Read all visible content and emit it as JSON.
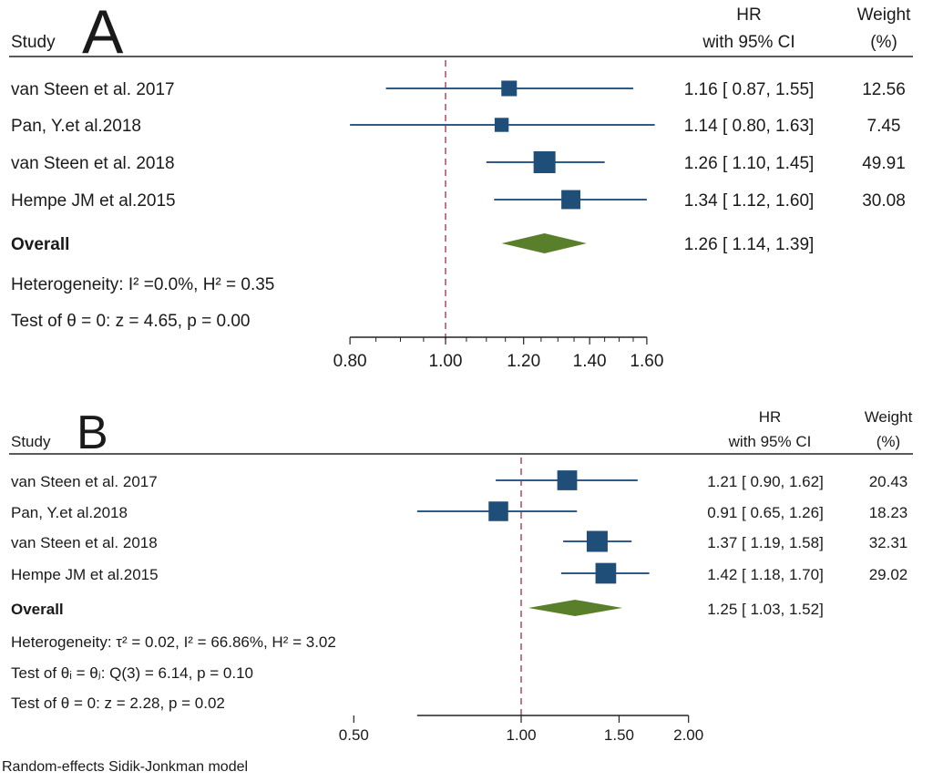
{
  "chart_data": [
    {
      "type": "forest",
      "panel_label": "A",
      "header": {
        "study": "Study",
        "hr_line1": "HR",
        "hr_line2": "with 95% CI",
        "weight_line1": "Weight",
        "weight_line2": "(%)"
      },
      "studies": [
        {
          "name": "van Steen et al. 2017",
          "hr": 1.16,
          "lo": 0.87,
          "hi": 1.55,
          "weight": 12.56,
          "ci_text": "1.16 [  0.87,  1.55]",
          "weight_text": "12.56"
        },
        {
          "name": "Pan, Y.et al.2018",
          "hr": 1.14,
          "lo": 0.8,
          "hi": 1.63,
          "weight": 7.45,
          "ci_text": "1.14 [  0.80,  1.63]",
          "weight_text": "7.45"
        },
        {
          "name": "van Steen et al. 2018",
          "hr": 1.26,
          "lo": 1.1,
          "hi": 1.45,
          "weight": 49.91,
          "ci_text": "1.26 [  1.10,  1.45]",
          "weight_text": "49.91"
        },
        {
          "name": "Hempe JM et al.2015",
          "hr": 1.34,
          "lo": 1.12,
          "hi": 1.6,
          "weight": 30.08,
          "ci_text": "1.34 [  1.12,  1.60]",
          "weight_text": "30.08"
        }
      ],
      "overall": {
        "label": "Overall",
        "hr": 1.26,
        "lo": 1.14,
        "hi": 1.39,
        "ci_text": "1.26 [  1.14,  1.39]"
      },
      "stats": [
        "Heterogeneity: I² =0.0%, H² = 0.35",
        "Test of θ = 0: z = 4.65, p = 0.00"
      ],
      "xaxis": {
        "scale": "log",
        "range": [
          0.8,
          1.6
        ],
        "ticks": [
          0.8,
          1.0,
          1.2,
          1.4,
          1.6
        ],
        "tick_labels": [
          "0.80",
          "1.00",
          "1.20",
          "1.40",
          "1.60"
        ],
        "minor_ticks": [
          0.85,
          0.9,
          0.95,
          1.05,
          1.1,
          1.15,
          1.25,
          1.3,
          1.35,
          1.45,
          1.5,
          1.55
        ],
        "reference_line": 1.0
      },
      "colors": {
        "marker": "#1f4e79",
        "ci_line": "#2e5b8a",
        "diamond": "#5a7f2a",
        "reference": "#b04a5a"
      }
    },
    {
      "type": "forest",
      "panel_label": "B",
      "header": {
        "study": "Study",
        "hr_line1": "HR",
        "hr_line2": "with 95% CI",
        "weight_line1": "Weight",
        "weight_line2": "(%)"
      },
      "studies": [
        {
          "name": "van Steen et al. 2017",
          "hr": 1.21,
          "lo": 0.9,
          "hi": 1.62,
          "weight": 20.43,
          "ci_text": "1.21 [  0.90,  1.62]",
          "weight_text": "20.43"
        },
        {
          "name": "Pan, Y.et al.2018",
          "hr": 0.91,
          "lo": 0.65,
          "hi": 1.26,
          "weight": 18.23,
          "ci_text": "0.91 [  0.65,  1.26]",
          "weight_text": "18.23"
        },
        {
          "name": "van Steen et al. 2018",
          "hr": 1.37,
          "lo": 1.19,
          "hi": 1.58,
          "weight": 32.31,
          "ci_text": "1.37 [  1.19,  1.58]",
          "weight_text": "32.31"
        },
        {
          "name": "Hempe JM et al.2015",
          "hr": 1.42,
          "lo": 1.18,
          "hi": 1.7,
          "weight": 29.02,
          "ci_text": "1.42 [  1.18,  1.70]",
          "weight_text": "29.02"
        }
      ],
      "overall": {
        "label": "Overall",
        "hr": 1.25,
        "lo": 1.03,
        "hi": 1.52,
        "ci_text": "1.25 [  1.03,  1.52]"
      },
      "stats": [
        "Heterogeneity: τ² = 0.02, I² = 66.86%, H² = 3.02",
        "Test of θᵢ = θⱼ: Q(3) = 6.14, p = 0.10",
        "Test of θ = 0: z = 2.28, p = 0.02"
      ],
      "xaxis": {
        "scale": "log",
        "range": [
          0.65,
          2.0
        ],
        "ticks": [
          0.5,
          1.0,
          1.5,
          2.0
        ],
        "tick_labels": [
          "0.50",
          "1.00",
          "1.50",
          "2.00"
        ],
        "minor_ticks": [],
        "reference_line": 1.0
      },
      "colors": {
        "marker": "#1f4e79",
        "ci_line": "#2e5b8a",
        "diamond": "#5a7f2a",
        "reference": "#b04a5a"
      }
    }
  ],
  "footnote": "Random-effects Sidik-Jonkman model"
}
